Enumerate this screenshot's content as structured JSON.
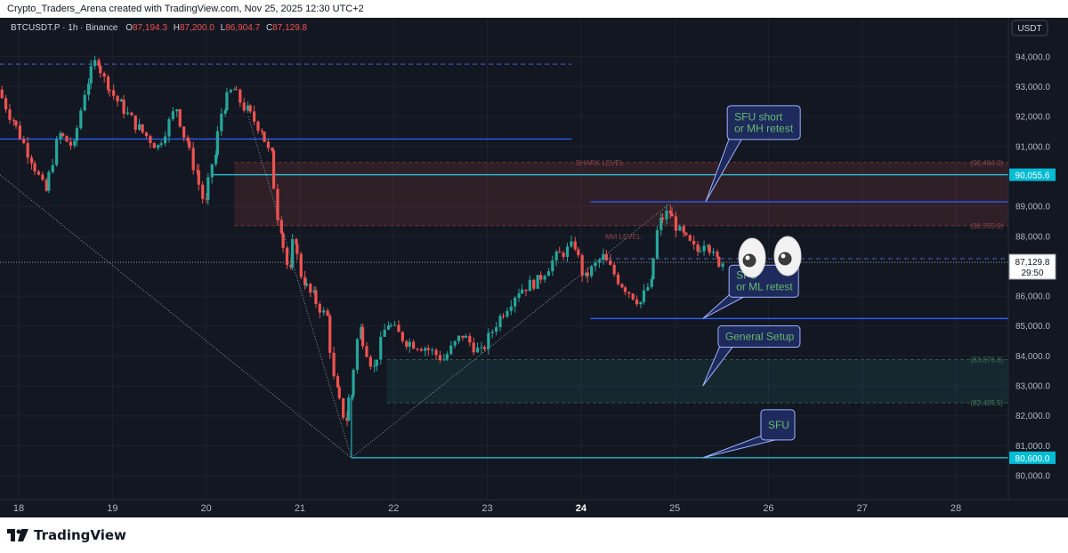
{
  "header": {
    "caption": "Crypto_Traders_Arena created with TradingView.com, Nov 25, 2025 12:30 UTC+2"
  },
  "symbol": {
    "name": "BTCUSDT.P · 1h · Binance",
    "open_label": "O",
    "open": "87,194.3",
    "high_label": "H",
    "high": "87,200.0",
    "low_label": "L",
    "low": "86,904.7",
    "close_label": "C",
    "close": "87,129.8"
  },
  "currency_label": "USDT",
  "brand": "TradingView",
  "colors": {
    "background": "#131722",
    "up": "#26a69a",
    "down": "#ef5350",
    "level_line": "#2962ff",
    "callout_bg": "#1e2a5c",
    "callout_border": "#9fb2ff",
    "callout_text": "#66bb6a"
  },
  "chart_data": {
    "type": "candlestick",
    "title": "",
    "xlabel": "",
    "ylabel": "",
    "ylim": [
      79200,
      95300
    ],
    "xlim": [
      17.8,
      28.56
    ],
    "x_ticks": [
      {
        "x": 18,
        "label": "18"
      },
      {
        "x": 19,
        "label": "19"
      },
      {
        "x": 20,
        "label": "20"
      },
      {
        "x": 21,
        "label": "21"
      },
      {
        "x": 22,
        "label": "22"
      },
      {
        "x": 23,
        "label": "23"
      },
      {
        "x": 24,
        "label": "24"
      },
      {
        "x": 25,
        "label": "25"
      },
      {
        "x": 26,
        "label": "26"
      },
      {
        "x": 27,
        "label": "27"
      },
      {
        "x": 28,
        "label": "28"
      }
    ],
    "y_ticks": [
      {
        "value": 94000,
        "label": "94,000.0"
      },
      {
        "value": 93000,
        "label": "93,000.0"
      },
      {
        "value": 92000,
        "label": "92,000.0"
      },
      {
        "value": 91000,
        "label": "91,000.0"
      },
      {
        "value": 89000,
        "label": "89,000.0"
      },
      {
        "value": 88000,
        "label": "88,000.0"
      },
      {
        "value": 86000,
        "label": "86,000.0"
      },
      {
        "value": 85000,
        "label": "85,000.0"
      },
      {
        "value": 84000,
        "label": "84,000.0"
      },
      {
        "value": 83000,
        "label": "83,000.0"
      },
      {
        "value": 82000,
        "label": "82,000.0"
      },
      {
        "value": 81000,
        "label": "81,000.0"
      },
      {
        "value": 80000,
        "label": "80,000.0"
      }
    ],
    "price_tags": [
      {
        "value": 90055.6,
        "label": "90,055.6",
        "style": "cyan"
      },
      {
        "value": 87129.8,
        "label": "87,129.8",
        "sublabel": "29:50",
        "style": "current"
      },
      {
        "value": 80600,
        "label": "80,600.0",
        "style": "cyan"
      }
    ],
    "anchors": [
      {
        "x": 17.8,
        "value": 92900
      },
      {
        "x": 17.95,
        "value": 91900
      },
      {
        "x": 18.15,
        "value": 90600
      },
      {
        "x": 18.3,
        "value": 89500
      },
      {
        "x": 18.45,
        "value": 91400
      },
      {
        "x": 18.6,
        "value": 91000
      },
      {
        "x": 18.75,
        "value": 93200
      },
      {
        "x": 18.85,
        "value": 93900
      },
      {
        "x": 18.95,
        "value": 93100
      },
      {
        "x": 19.1,
        "value": 92400
      },
      {
        "x": 19.3,
        "value": 91600
      },
      {
        "x": 19.5,
        "value": 91000
      },
      {
        "x": 19.7,
        "value": 92300
      },
      {
        "x": 19.8,
        "value": 91200
      },
      {
        "x": 19.9,
        "value": 90200
      },
      {
        "x": 20.0,
        "value": 89100
      },
      {
        "x": 20.1,
        "value": 90700
      },
      {
        "x": 20.2,
        "value": 92400
      },
      {
        "x": 20.3,
        "value": 92900
      },
      {
        "x": 20.45,
        "value": 92200
      },
      {
        "x": 20.6,
        "value": 91600
      },
      {
        "x": 20.7,
        "value": 90700
      },
      {
        "x": 20.8,
        "value": 88300
      },
      {
        "x": 20.9,
        "value": 86800
      },
      {
        "x": 20.95,
        "value": 87900
      },
      {
        "x": 21.05,
        "value": 86500
      },
      {
        "x": 21.15,
        "value": 86000
      },
      {
        "x": 21.3,
        "value": 85300
      },
      {
        "x": 21.4,
        "value": 82800
      },
      {
        "x": 21.5,
        "value": 81900
      },
      {
        "x": 21.55,
        "value": 82700
      },
      {
        "x": 21.65,
        "value": 84900
      },
      {
        "x": 21.8,
        "value": 83600
      },
      {
        "x": 21.95,
        "value": 85100
      },
      {
        "x": 22.15,
        "value": 84500
      },
      {
        "x": 22.35,
        "value": 84300
      },
      {
        "x": 22.55,
        "value": 83900
      },
      {
        "x": 22.75,
        "value": 84700
      },
      {
        "x": 22.95,
        "value": 84100
      },
      {
        "x": 23.15,
        "value": 85300
      },
      {
        "x": 23.35,
        "value": 86200
      },
      {
        "x": 23.55,
        "value": 86500
      },
      {
        "x": 23.75,
        "value": 87300
      },
      {
        "x": 23.95,
        "value": 87700
      },
      {
        "x": 24.05,
        "value": 86600
      },
      {
        "x": 24.25,
        "value": 87300
      },
      {
        "x": 24.45,
        "value": 86400
      },
      {
        "x": 24.65,
        "value": 85800
      },
      {
        "x": 24.75,
        "value": 86400
      },
      {
        "x": 24.85,
        "value": 88500
      },
      {
        "x": 24.95,
        "value": 88800
      },
      {
        "x": 25.1,
        "value": 88000
      },
      {
        "x": 25.25,
        "value": 87500
      },
      {
        "x": 25.35,
        "value": 87900
      },
      {
        "x": 25.45,
        "value": 87200
      },
      {
        "x": 25.5,
        "value": 87130
      }
    ],
    "levels": [
      {
        "name": "high-level-line",
        "x_start": 17.8,
        "x_end": 23.9,
        "value": 91250,
        "color": "#2962ff"
      },
      {
        "name": "cyan-level-line",
        "x_start": 20.05,
        "x_end": 28.56,
        "value": 90055.6,
        "color": "#26c6da"
      },
      {
        "name": "range-high-line",
        "x_start": 24.1,
        "x_end": 28.56,
        "value": 89150,
        "color": "#2962ff"
      },
      {
        "name": "range-low-line",
        "x_start": 24.1,
        "x_end": 28.56,
        "value": 85250,
        "color": "#2962ff"
      },
      {
        "name": "sfu-low-line",
        "x_start": 21.55,
        "x_end": 28.56,
        "value": 80600,
        "color": "#26c6da"
      }
    ],
    "dashed_levels": [
      {
        "name": "top-dashed-line",
        "x_start": 17.8,
        "x_end": 23.9,
        "value": 93750
      },
      {
        "name": "current-price-dashed-line",
        "x_start": 24.2,
        "x_end": 28.56,
        "value": 87250
      }
    ],
    "zones": [
      {
        "name": "shark-zone",
        "x_start": 20.3,
        "x_end": 28.56,
        "top": 90464.3,
        "bottom": 88355.9,
        "label": "SHARK LEVEL",
        "label_x": 24.2,
        "top_label": "(90,464.3)",
        "bottom_label": "(88,355.9)",
        "fill": "rgba(239,83,80,0.13)",
        "stroke": "#7a3636"
      },
      {
        "name": "demand-zone",
        "x_start": 21.93,
        "x_end": 28.56,
        "top": 83876.8,
        "bottom": 82435.5,
        "top_label": "(83,876.8)",
        "bottom_label": "(82,435.5)",
        "fill": "rgba(38,166,154,0.12)",
        "stroke": "#2d5a45"
      }
    ],
    "inner_label": {
      "text": "MM LEVEL",
      "x": 24.45,
      "value": 87900
    },
    "dotted_lines": [
      {
        "x1": 17.8,
        "v1": 90050,
        "x2": 21.55,
        "v2": 80600
      },
      {
        "x1": 20.45,
        "v1": 92000,
        "x2": 21.55,
        "v2": 80600
      },
      {
        "x1": 21.55,
        "v1": 80600,
        "x2": 24.95,
        "v2": 89100
      }
    ],
    "callouts": [
      {
        "name": "sfu-short-callout",
        "lines": [
          "SFU short",
          "or MH retest"
        ],
        "x": 25.95,
        "value": 91800,
        "width": 82,
        "height": 38,
        "target_x": 25.33,
        "target_value": 89150
      },
      {
        "name": "sfu-ml-callout",
        "lines": [
          "SFU",
          "or ML retest"
        ],
        "x": 25.95,
        "value": 86500,
        "width": 78,
        "height": 36,
        "target_x": 25.3,
        "target_value": 85250
      },
      {
        "name": "general-setup-callout",
        "lines": [
          "General Setup"
        ],
        "x": 25.9,
        "value": 84650,
        "width": 92,
        "height": 24,
        "target_x": 25.3,
        "target_value": 83000
      },
      {
        "name": "sfu-callout",
        "lines": [
          "SFU"
        ],
        "x": 26.1,
        "value": 81700,
        "width": 38,
        "height": 34,
        "target_x": 25.3,
        "target_value": 80600
      }
    ]
  }
}
